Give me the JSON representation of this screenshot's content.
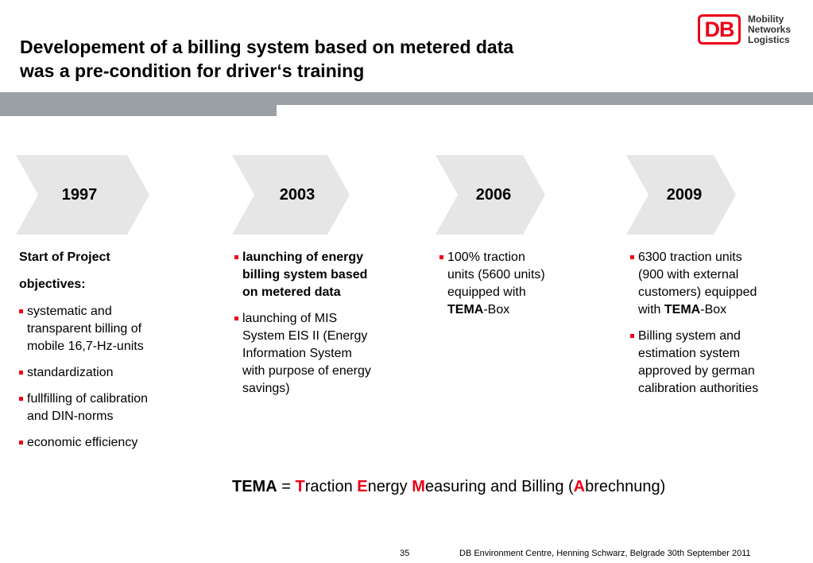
{
  "title": {
    "line1": "Developement of a billing system based on metered data",
    "line2": "was a pre-condition for driver‘s training"
  },
  "logo": {
    "mark": "DB",
    "line1": "Mobility",
    "line2": "Networks",
    "line3": "Logistics"
  },
  "timeline": [
    {
      "year": "1997"
    },
    {
      "year": "2003"
    },
    {
      "year": "2006"
    },
    {
      "year": "2009"
    }
  ],
  "col1": {
    "head1": "Start of Project",
    "head2": "objectives:",
    "items": [
      "systematic and transparent billing of mobile 16,7-Hz-units",
      "standardization",
      "fullfilling of calibration and DIN-norms",
      "economic efficiency"
    ]
  },
  "col2": {
    "items": [
      "launching of energy billing system based on metered data",
      "launching of MIS System EIS II (Energy Information System with purpose of energy savings)"
    ]
  },
  "col3": {
    "item1_pre": "100% traction units (5600 units) equipped with ",
    "item1_bold": "TEMA",
    "item1_post": "-Box"
  },
  "col4": {
    "item1_pre": "6300 traction units (900 with external customers) equipped with ",
    "item1_bold": "TEMA",
    "item1_post": "-Box",
    "item2": "Billing system and estimation system approved by german calibration authorities"
  },
  "tema": {
    "abbr": "TEMA",
    "eq": " = ",
    "t": "T",
    "t_rest": "raction ",
    "e": "E",
    "e_rest": "nergy ",
    "m": "M",
    "m_rest": "easuring and Billing (",
    "a": "A",
    "a_rest": "brechnung)"
  },
  "footer": {
    "page": "35",
    "text": "DB Environment Centre, Henning Schwarz, Belgrade 30th September 2011"
  },
  "colors": {
    "accent": "#ec0016",
    "chevron": "#e6e6e6",
    "bar": "#9aa0a6"
  }
}
